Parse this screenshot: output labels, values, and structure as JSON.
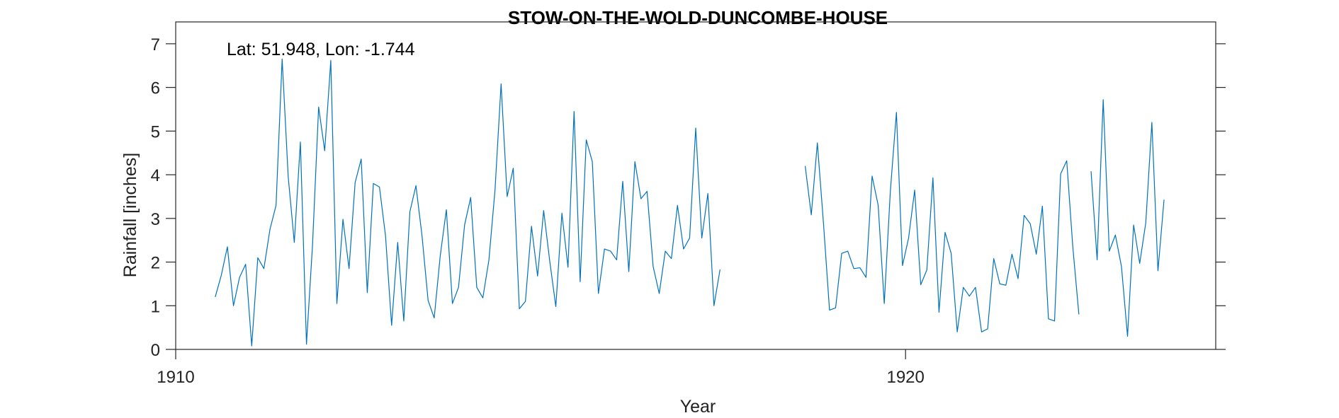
{
  "chart_data": {
    "type": "line",
    "title": "STOW-ON-THE-WOLD-DUNCOMBE-HOUSE",
    "xlabel": "Year",
    "ylabel": "Rainfall [inches]",
    "annotation": "Lat: 51.948, Lon: -1.744",
    "xlim": [
      1910,
      1924.25
    ],
    "ylim": [
      0,
      7.5
    ],
    "xticks": [
      1910,
      1920
    ],
    "xtick_labels": [
      "1910",
      "1920"
    ],
    "yticks": [
      0,
      1,
      2,
      3,
      4,
      5,
      6,
      7
    ],
    "ytick_labels": [
      "0",
      "1",
      "2",
      "3",
      "4",
      "5",
      "6",
      "7"
    ],
    "grid": false,
    "line_color": "#0072BD",
    "series": [
      {
        "segments": [
          {
            "start_year": 1910.5417,
            "step": 0.0833333,
            "values": [
              1.2,
              1.7,
              2.35,
              1.0,
              1.65,
              1.95,
              0.08,
              2.1,
              1.85,
              2.75,
              3.3,
              6.65,
              3.95,
              2.45,
              4.75,
              0.12,
              2.4,
              5.55,
              4.55,
              6.62,
              1.05,
              2.98,
              1.85,
              3.82,
              4.36,
              1.3,
              3.8,
              3.72,
              2.6,
              0.55,
              2.45,
              0.65,
              3.15,
              3.75,
              2.6,
              1.12,
              0.72,
              2.15,
              3.2,
              1.05,
              1.42,
              2.85,
              3.48,
              1.42,
              1.18,
              2.05,
              3.65,
              6.08,
              3.5,
              4.15,
              0.93,
              1.1,
              2.82,
              1.68,
              3.18,
              2.02,
              0.98,
              3.12,
              1.88,
              5.45,
              1.55,
              4.8,
              4.3,
              1.28,
              2.3,
              2.25,
              2.05,
              3.85,
              1.78,
              4.3,
              3.45,
              3.62,
              1.9,
              1.28,
              2.25,
              2.08,
              3.3,
              2.3,
              2.55,
              5.07,
              2.55,
              3.57,
              1.0,
              1.83
            ]
          },
          {
            "start_year": 1918.625,
            "step": 0.0833333,
            "values": [
              4.2,
              3.08,
              4.73,
              2.9,
              0.9,
              0.95,
              2.2,
              2.25,
              1.85,
              1.87,
              1.65,
              3.97,
              3.3,
              1.05,
              3.62,
              5.43,
              1.92,
              2.55,
              3.65,
              1.48,
              1.82,
              3.93,
              0.85,
              2.68,
              2.2,
              0.4,
              1.42,
              1.22,
              1.42,
              0.4,
              0.47,
              2.08,
              1.5,
              1.47,
              2.18,
              1.62,
              3.07,
              2.88,
              2.18,
              3.28,
              0.7,
              0.65,
              4.02,
              4.32,
              2.35,
              0.8
            ]
          },
          {
            "start_year": 1922.5417,
            "step": 0.0833333,
            "values": [
              4.08,
              2.05,
              5.72,
              2.25,
              2.62,
              1.9,
              0.3,
              2.85,
              1.97,
              2.9,
              5.2,
              1.8,
              3.43
            ]
          }
        ]
      }
    ]
  }
}
